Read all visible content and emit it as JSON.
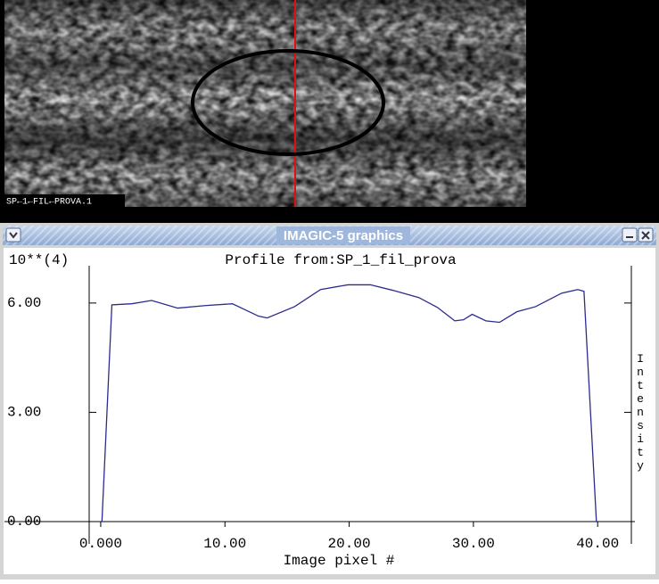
{
  "image": {
    "label": "SP←1←FIL←PROVA.1"
  },
  "window": {
    "title": "IMAGIC-5 graphics"
  },
  "chart_data": {
    "type": "line",
    "title": "Profile from:SP_1_fil_prova",
    "scale_label": "10**(4)",
    "x_label": "Image pixel #",
    "y_label": "Intensity",
    "x": [
      0.1,
      0.9,
      2.5,
      4.1,
      6.2,
      8.4,
      10.6,
      12.7,
      13.4,
      15.6,
      17.7,
      19.9,
      21.7,
      23.5,
      25.6,
      27.1,
      28.5,
      29.2,
      29.9,
      31.0,
      32.1,
      33.5,
      35.0,
      37.1,
      38.4,
      38.9,
      39.9
    ],
    "series": [
      {
        "color": "#2b2b8f",
        "values": [
          0,
          5.95,
          5.98,
          6.07,
          5.86,
          5.93,
          5.98,
          5.64,
          5.59,
          5.9,
          6.37,
          6.5,
          6.5,
          6.35,
          6.15,
          5.88,
          5.51,
          5.54,
          5.69,
          5.51,
          5.47,
          5.76,
          5.9,
          6.27,
          6.37,
          6.32,
          0
        ]
      }
    ],
    "xlim": [
      -1,
      43
    ],
    "ylim": [
      0,
      7
    ],
    "xticks": [
      {
        "value": 0,
        "label": "0.000"
      },
      {
        "value": 10,
        "label": "10.00"
      },
      {
        "value": 20,
        "label": "20.00"
      },
      {
        "value": 30,
        "label": "30.00"
      },
      {
        "value": 40,
        "label": "40.00"
      }
    ],
    "yticks": [
      {
        "value": 0,
        "label": "0.00"
      },
      {
        "value": 3,
        "label": "3.00"
      },
      {
        "value": 6,
        "label": "6.00"
      }
    ]
  }
}
